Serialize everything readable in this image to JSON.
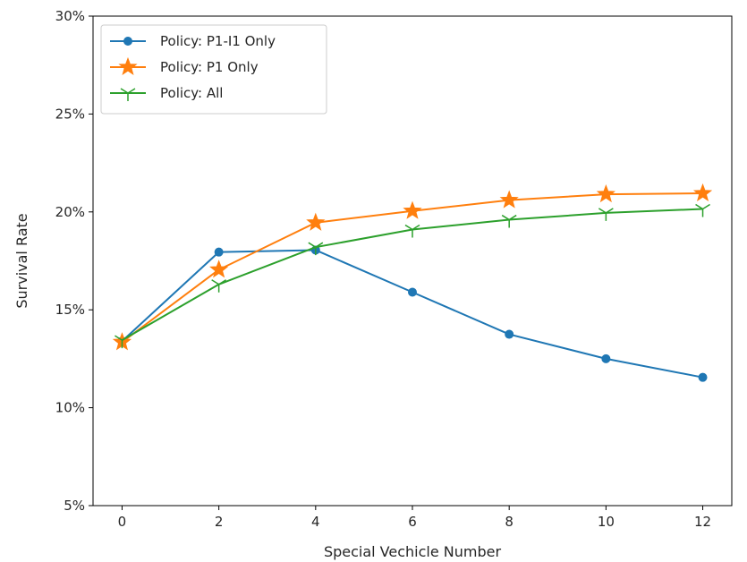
{
  "chart_data": {
    "type": "line",
    "xlabel": "Special Vechicle Number",
    "ylabel": "Survival Rate",
    "x": [
      0,
      2,
      4,
      6,
      8,
      10,
      12
    ],
    "xlim": [
      -0.6,
      12.6
    ],
    "ylim": [
      5,
      30
    ],
    "xticks": [
      0,
      2,
      4,
      6,
      8,
      10,
      12
    ],
    "yticks": [
      5,
      10,
      15,
      20,
      25,
      30
    ],
    "ytick_labels": [
      "5%",
      "10%",
      "15%",
      "20%",
      "25%",
      "30%"
    ],
    "grid": false,
    "legend_position": "top-left",
    "series": [
      {
        "name": "Policy: P1-I1 Only",
        "marker": "circle",
        "color": "#1f77b4",
        "values": [
          13.4,
          17.95,
          18.05,
          15.9,
          13.75,
          12.5,
          11.55
        ]
      },
      {
        "name": "Policy: P1 Only",
        "marker": "star",
        "color": "#ff7f0e",
        "values": [
          13.35,
          17.05,
          19.45,
          20.05,
          20.6,
          20.9,
          20.95
        ]
      },
      {
        "name": "Policy: All",
        "marker": "tri-down",
        "color": "#2ca02c",
        "values": [
          13.45,
          16.3,
          18.2,
          19.1,
          19.6,
          19.95,
          20.15
        ]
      }
    ]
  }
}
